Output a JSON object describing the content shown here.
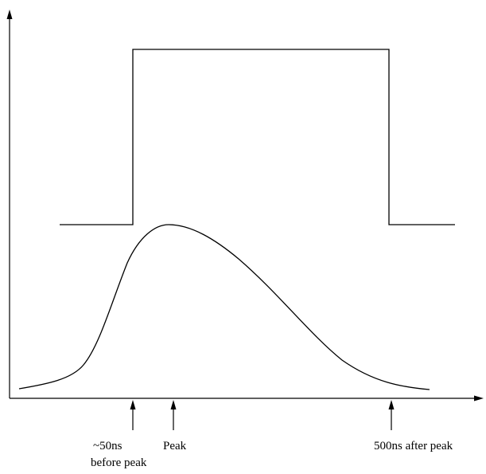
{
  "diagram": {
    "labels": {
      "before_peak_line1": "~50ns",
      "before_peak_line2": "before peak",
      "peak": "Peak",
      "after_peak": "500ns after peak"
    },
    "colors": {
      "stroke": "#000000",
      "background": "#ffffff"
    }
  }
}
